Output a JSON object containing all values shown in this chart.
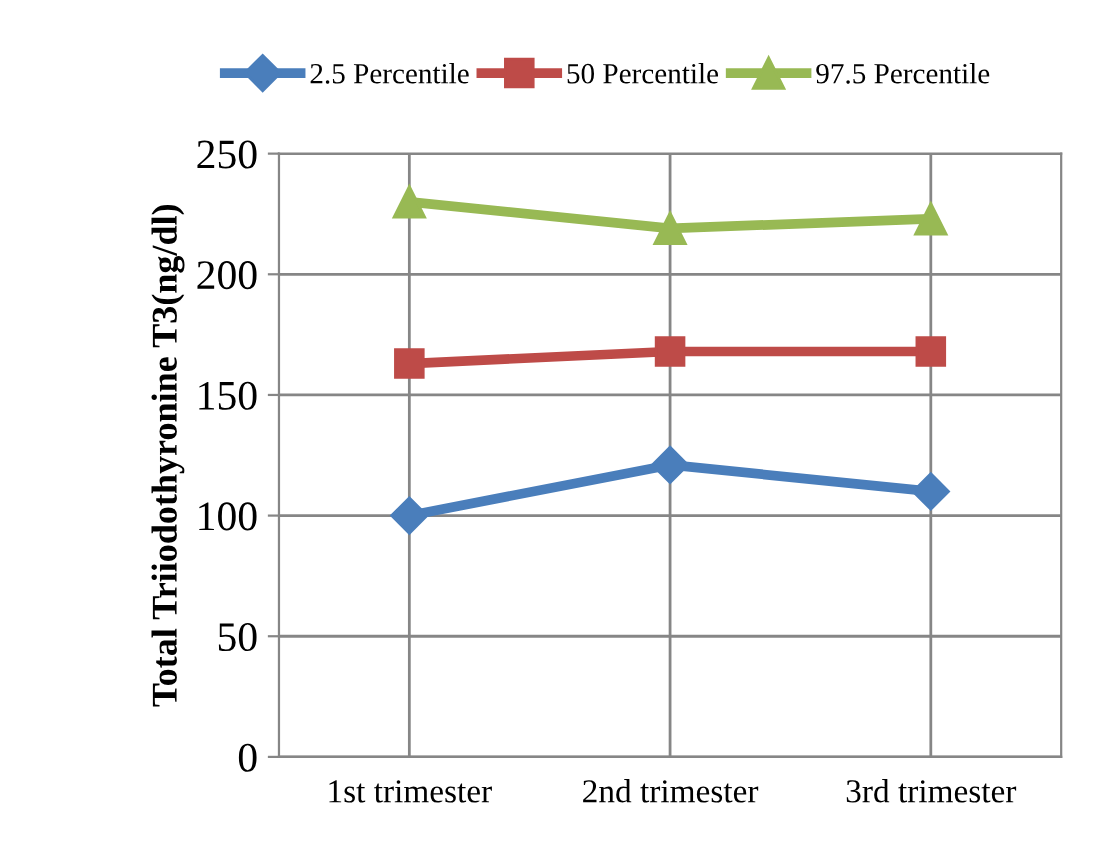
{
  "chart_data": {
    "type": "line",
    "ylabel": "Total Triiodothyronine T3(ng/dl)",
    "categories": [
      "1st trimester",
      "2nd trimester",
      "3rd trimester"
    ],
    "series": [
      {
        "name": "2.5 Percentile",
        "color": "#4a7ebb",
        "marker": "diamond",
        "values": [
          100,
          121,
          110
        ]
      },
      {
        "name": "50 Percentile",
        "color": "#be4b48",
        "marker": "square",
        "values": [
          163,
          168,
          168
        ]
      },
      {
        "name": "97.5 Percentile",
        "color": "#98b954",
        "marker": "triangle",
        "values": [
          230,
          219,
          223
        ]
      }
    ],
    "ylim": [
      0,
      250
    ],
    "yticks": [
      0,
      50,
      100,
      150,
      200,
      250
    ],
    "grid": true,
    "legend": "top",
    "line_style": "solid"
  }
}
